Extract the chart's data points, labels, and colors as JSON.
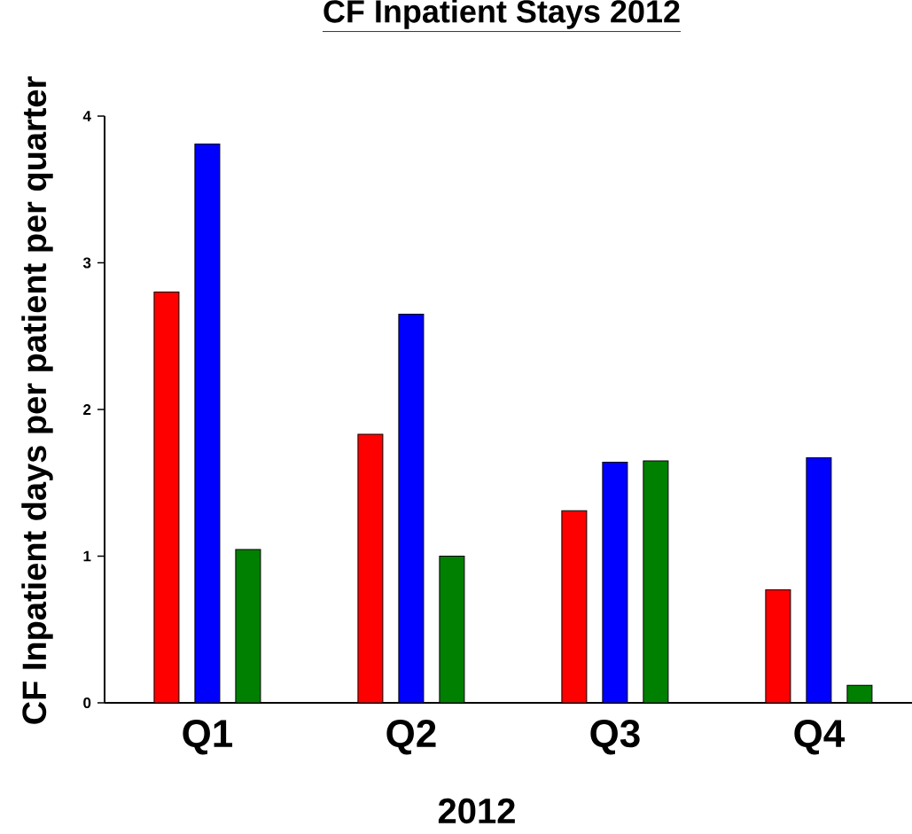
{
  "chart_data": {
    "type": "bar",
    "title": "CF Inpatient Stays 2012",
    "xlabel": "2012",
    "ylabel": "CF Inpatient days per patient per quarter",
    "categories": [
      "Q1",
      "Q2",
      "Q3",
      "Q4"
    ],
    "series": [
      {
        "color": "#ff0000",
        "values": [
          2.8,
          1.83,
          1.31,
          0.77
        ]
      },
      {
        "color": "#0000ff",
        "values": [
          3.81,
          2.65,
          1.64,
          1.67
        ]
      },
      {
        "color": "#008000",
        "values": [
          1.045,
          1.0,
          1.65,
          0.12
        ]
      }
    ],
    "ylim": [
      0,
      4
    ],
    "yticks": [
      0,
      1,
      2,
      3,
      4
    ],
    "grid": false
  }
}
